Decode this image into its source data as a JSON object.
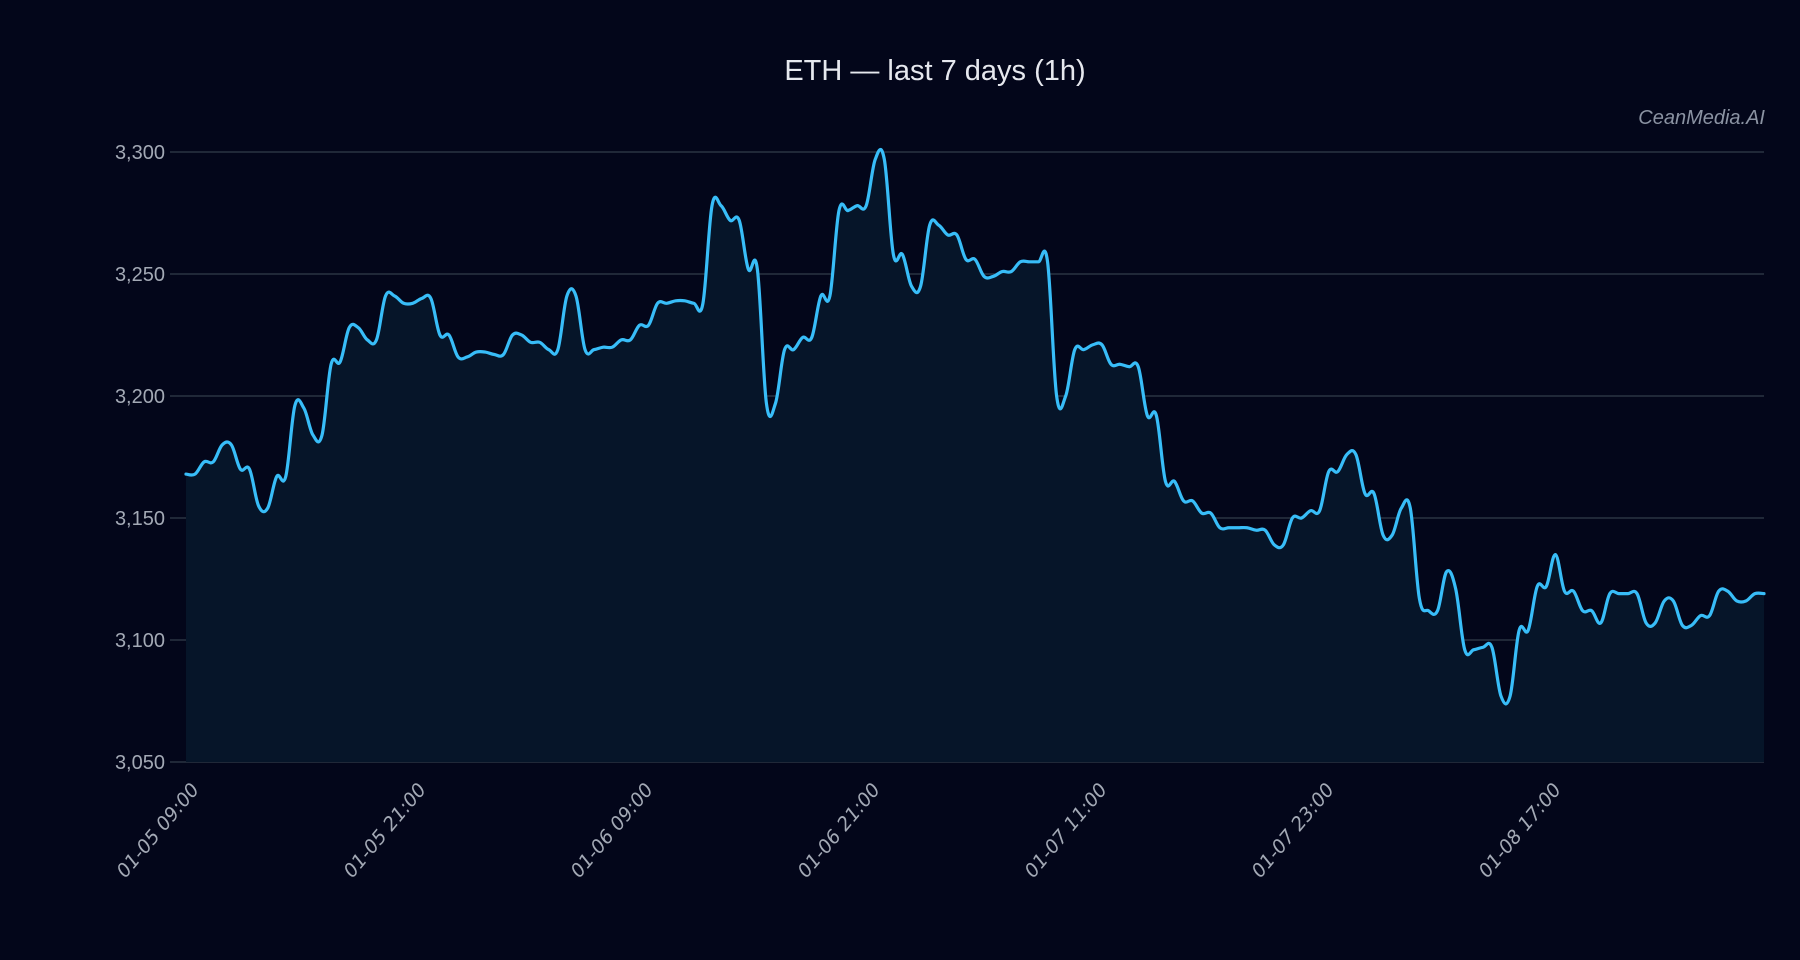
{
  "title": "ETH — last 7 days (1h)",
  "watermark": "CeanMedia.AI",
  "colors": {
    "background": "#03061a",
    "line": "#38bdf8",
    "fill": "#061529",
    "grid": "#2a3342",
    "tick_text": "#a3a9b5"
  },
  "chart_data": {
    "type": "area",
    "title": "ETH — last 7 days (1h)",
    "xlabel": "",
    "ylabel": "",
    "ylim": [
      3050,
      3300
    ],
    "grid": true,
    "legend": null,
    "yticks": [
      "3,050",
      "3,100",
      "3,150",
      "3,200",
      "3,250",
      "3,300"
    ],
    "ytick_values": [
      3050,
      3100,
      3150,
      3200,
      3250,
      3300
    ],
    "xticks": [
      "01-05 09:00",
      "01-05 21:00",
      "01-06 09:00",
      "01-06 21:00",
      "01-07 11:00",
      "01-07 23:00",
      "01-08 17:00"
    ],
    "series": [
      {
        "name": "ETH",
        "values": [
          3168,
          3168,
          3173,
          3173,
          3180,
          3180,
          3170,
          3170,
          3155,
          3154,
          3167,
          3167,
          3196,
          3195,
          3184,
          3184,
          3213,
          3214,
          3228,
          3228,
          3223,
          3223,
          3241,
          3241,
          3238,
          3238,
          3240,
          3240,
          3225,
          3225,
          3216,
          3216,
          3218,
          3218,
          3217,
          3217,
          3225,
          3225,
          3222,
          3222,
          3219,
          3219,
          3241,
          3241,
          3219,
          3219,
          3220,
          3220,
          3223,
          3223,
          3229,
          3229,
          3238,
          3238,
          3239,
          3239,
          3238,
          3238,
          3278,
          3278,
          3272,
          3272,
          3252,
          3252,
          3197,
          3197,
          3219,
          3219,
          3224,
          3224,
          3241,
          3241,
          3276,
          3276,
          3278,
          3278,
          3297,
          3297,
          3258,
          3258,
          3245,
          3245,
          3270,
          3270,
          3266,
          3266,
          3256,
          3256,
          3249,
          3249,
          3251,
          3251,
          3255,
          3255,
          3255,
          3255,
          3200,
          3200,
          3219,
          3219,
          3221,
          3221,
          3213,
          3213,
          3212,
          3212,
          3192,
          3192,
          3165,
          3165,
          3157,
          3157,
          3152,
          3152,
          3146,
          3146,
          3146,
          3146,
          3145,
          3145,
          3139,
          3139,
          3150,
          3150,
          3153,
          3153,
          3169,
          3169,
          3176,
          3176,
          3160,
          3160,
          3143,
          3143,
          3154,
          3154,
          3117,
          3112,
          3112,
          3128,
          3121,
          3096,
          3096,
          3097,
          3097,
          3077,
          3077,
          3104,
          3104,
          3122,
          3122,
          3135,
          3120,
          3120,
          3112,
          3112,
          3107,
          3119,
          3119,
          3119,
          3119,
          3107,
          3107,
          3116,
          3116,
          3106,
          3106,
          3110,
          3110,
          3120,
          3120,
          3116,
          3116,
          3119,
          3119
        ]
      }
    ]
  }
}
